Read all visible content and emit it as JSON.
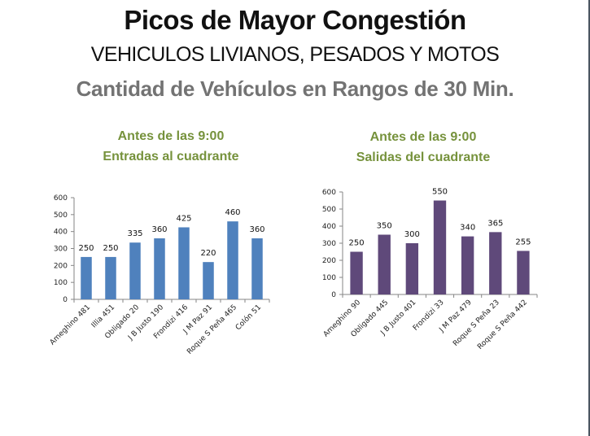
{
  "header": {
    "title": "Picos de Mayor Congestión",
    "subtitle": "VEHICULOS LIVIANOS, PESADOS Y MOTOS",
    "subtitle2": "Cantidad de Vehículos en Rangos de 30 Min."
  },
  "chart_data": [
    {
      "type": "bar",
      "title_line1": "Antes de las 9:00",
      "title_line2": "Entradas al cuadrante",
      "categories": [
        "Ameghino 481",
        "Illia 451",
        "Obligado 20",
        "J B Justo 190",
        "Frondizi 416",
        "J M Paz 91",
        "Roque S Peña 465",
        "Colón 51"
      ],
      "values": [
        250,
        250,
        335,
        360,
        425,
        220,
        460,
        360
      ],
      "yticks": [
        0,
        100,
        200,
        300,
        400,
        500,
        600
      ],
      "ylim": [
        0,
        600
      ],
      "xlabel": "",
      "ylabel": "",
      "grid": false,
      "legend": "none",
      "color": "#4f81bd"
    },
    {
      "type": "bar",
      "title_line1": "Antes de las 9:00",
      "title_line2": "Salidas del cuadrante",
      "categories": [
        "Ameghino 90",
        "Obligado 445",
        "J B Justo 401",
        "Frondizi 33",
        "J M Paz 479",
        "Roque S Peña 23",
        "Roque S Peña 442"
      ],
      "values": [
        250,
        350,
        300,
        550,
        340,
        365,
        255
      ],
      "yticks": [
        0,
        100,
        200,
        300,
        400,
        500,
        600
      ],
      "ylim": [
        0,
        600
      ],
      "xlabel": "",
      "ylabel": "",
      "grid": false,
      "legend": "none",
      "color": "#5f497a"
    }
  ]
}
